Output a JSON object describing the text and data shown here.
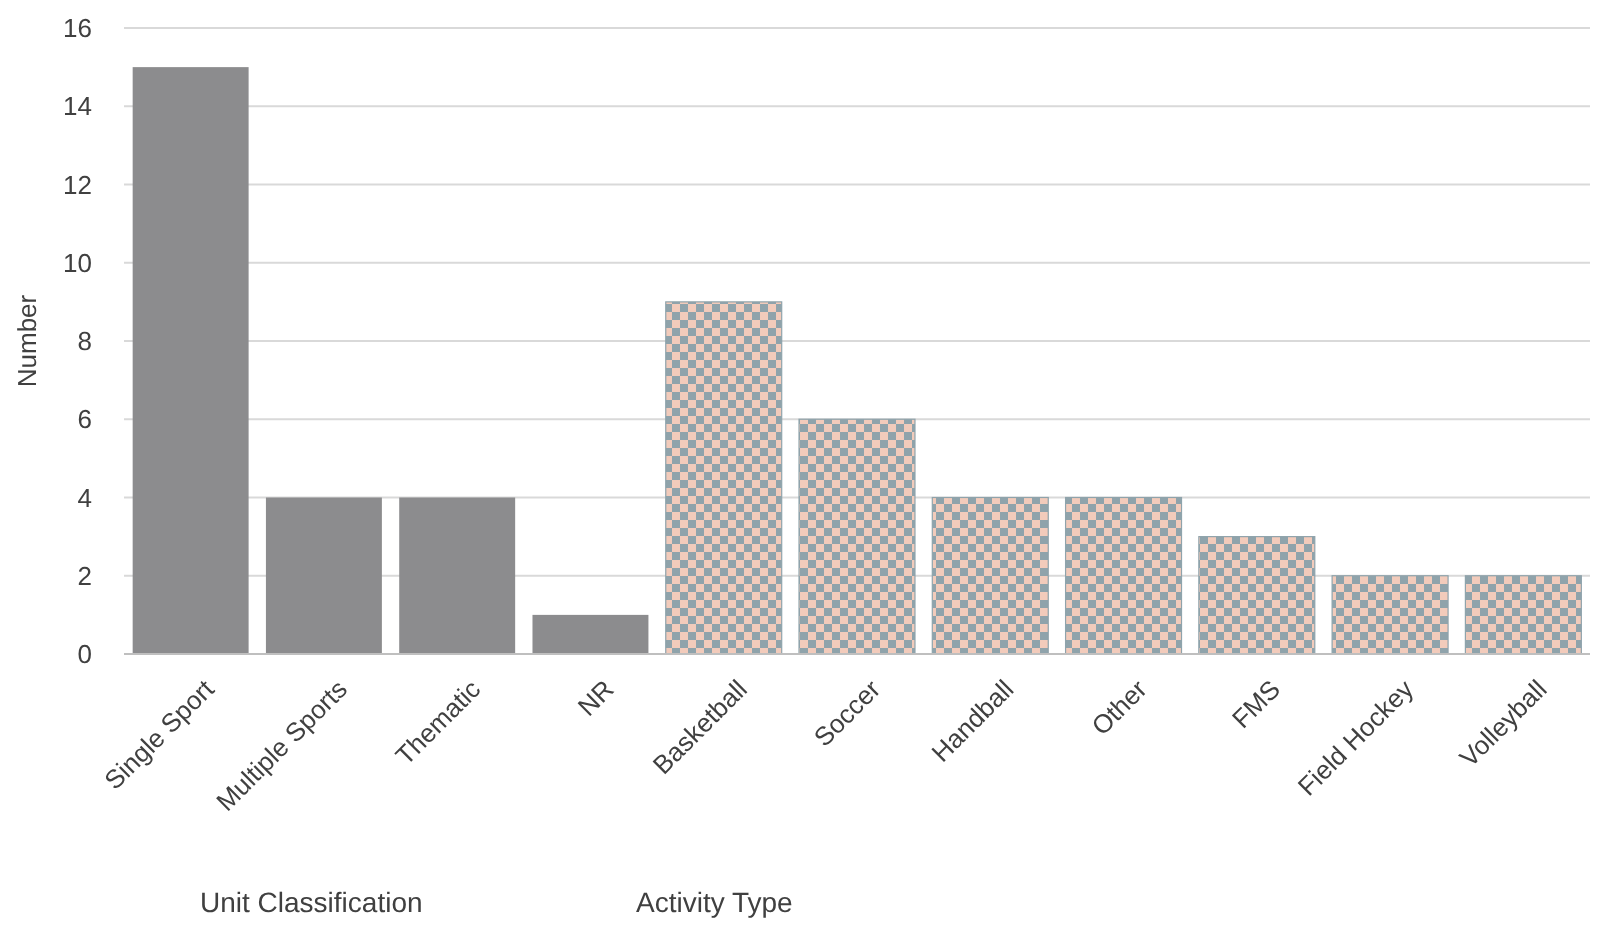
{
  "chart_data": {
    "type": "bar",
    "ylabel": "Number",
    "categories": [
      "Single Sport",
      "Multiple Sports",
      "Thematic",
      "NR",
      "Basketball",
      "Soccer",
      "Handball",
      "Other",
      "FMS",
      "Field Hockey",
      "Volleyball"
    ],
    "values": [
      15,
      4,
      4,
      1,
      9,
      6,
      4,
      4,
      3,
      2,
      2
    ],
    "colors": [
      "#8c8c8e",
      "#8c8c8e",
      "#8c8c8e",
      "#8c8c8e",
      "#8fa3ab",
      "#8fa3ab",
      "#8fa3ab",
      "#8fa3ab",
      "#8fa3ab",
      "#8fa3ab",
      "#8fa3ab"
    ],
    "ylim": [
      0,
      16
    ],
    "yticks": [
      0,
      2,
      4,
      6,
      8,
      10,
      12,
      14,
      16
    ],
    "grid": "y",
    "annotations": [
      "Unit Classification",
      "Activity Type"
    ]
  }
}
